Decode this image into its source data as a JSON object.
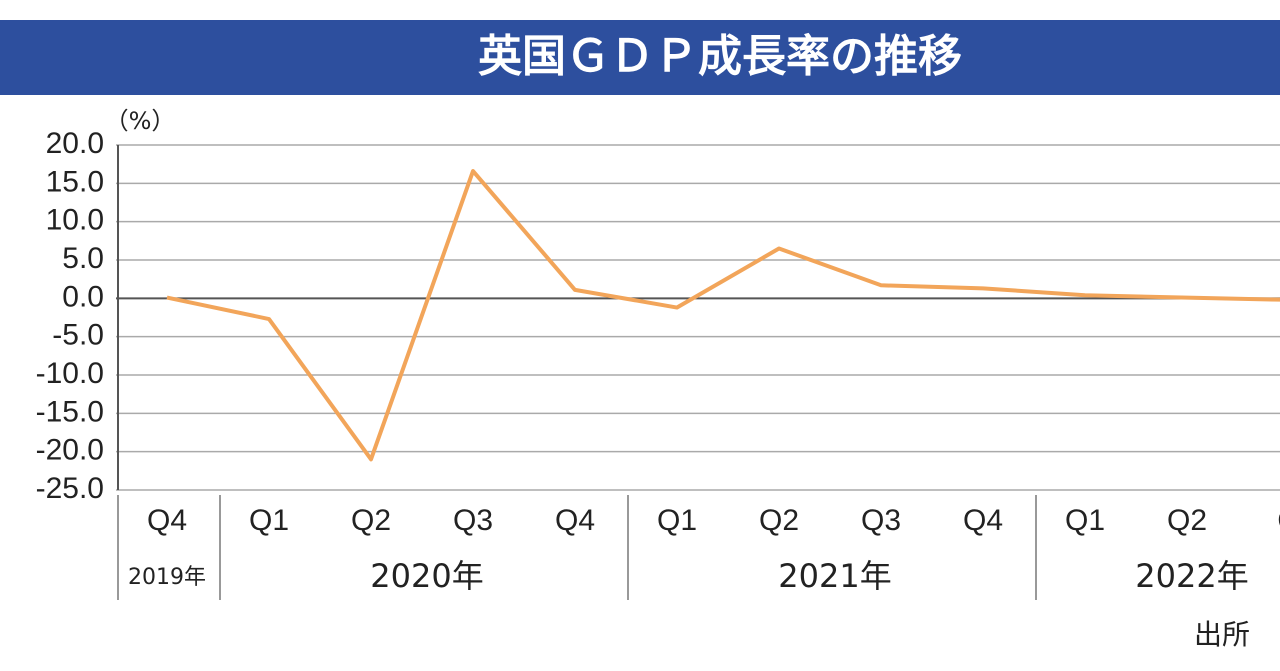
{
  "chart_data": {
    "type": "line",
    "title": "英国ＧＤＰ成長率の推移",
    "y_unit_label": "（%）",
    "categories": [
      "Q4",
      "Q1",
      "Q2",
      "Q3",
      "Q4",
      "Q1",
      "Q2",
      "Q3",
      "Q4",
      "Q1",
      "Q2",
      "Q"
    ],
    "year_labels": [
      "2019年",
      "2020年",
      "2021年",
      "2022年"
    ],
    "series": [
      {
        "name": "英国GDP成長率",
        "color": "#f2a55a",
        "values": [
          0.1,
          -2.7,
          -21.0,
          16.6,
          1.1,
          -1.2,
          6.5,
          1.7,
          1.3,
          0.4,
          0.1,
          -0.2
        ]
      }
    ],
    "ylim": [
      -25,
      20
    ],
    "yticks": [
      {
        "value": 20,
        "label": "20.0"
      },
      {
        "value": 15,
        "label": "15.0"
      },
      {
        "value": 10,
        "label": "10.0"
      },
      {
        "value": 5,
        "label": "5.0"
      },
      {
        "value": 0,
        "label": "0.0"
      },
      {
        "value": -5,
        "label": "-5.0"
      },
      {
        "value": -10,
        "label": "-10.0"
      },
      {
        "value": -15,
        "label": "-15.0"
      },
      {
        "value": -20,
        "label": "-20.0"
      },
      {
        "value": -25,
        "label": "-25.0"
      }
    ],
    "grid": true,
    "source_label": "出所"
  }
}
